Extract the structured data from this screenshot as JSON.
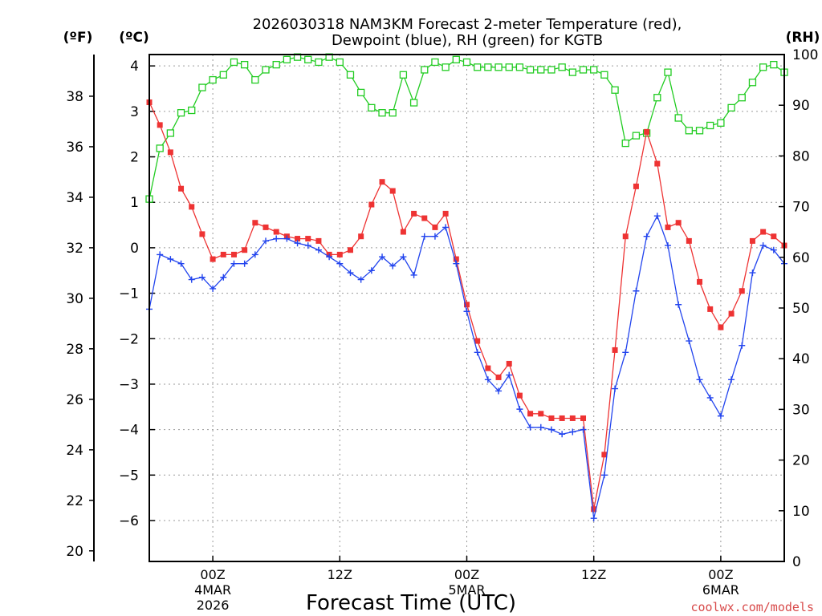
{
  "chart_data": {
    "type": "line",
    "title_line1": "2026030318 NAM3KM Forecast 2-meter Temperature (red),",
    "title_line2": "Dewpoint (blue), RH (green) for KGTB",
    "xlabel": "Forecast Time (UTC)",
    "credit": "coolwx.com/models",
    "left_outer_unit": "(ºF)",
    "left_inner_unit": "(ºC)",
    "right_unit": "(RH)",
    "xlim": [
      -6,
      54
    ],
    "ylim_c": [
      -6.9,
      4.25
    ],
    "ylim_rh": [
      0,
      100
    ],
    "x_ticks": [
      {
        "x": 0,
        "l1": "00Z",
        "l2": "4MAR",
        "l3": "2026"
      },
      {
        "x": 12,
        "l1": "12Z",
        "l2": "",
        "l3": ""
      },
      {
        "x": 24,
        "l1": "00Z",
        "l2": "5MAR",
        "l3": ""
      },
      {
        "x": 36,
        "l1": "12Z",
        "l2": "",
        "l3": ""
      },
      {
        "x": 48,
        "l1": "00Z",
        "l2": "6MAR",
        "l3": ""
      }
    ],
    "c_ticks": [
      4,
      3,
      2,
      1,
      0,
      -1,
      -2,
      -3,
      -4,
      -5,
      -6
    ],
    "c_tick_labels": [
      "4",
      "3",
      "2",
      "1",
      "0",
      "−1",
      "−2",
      "−3",
      "−4",
      "−5",
      "−6"
    ],
    "f_ticks": [
      38,
      36,
      34,
      32,
      30,
      28,
      26,
      24,
      22,
      20
    ],
    "rh_ticks": [
      100,
      90,
      80,
      70,
      60,
      50,
      40,
      30,
      20,
      10,
      0
    ],
    "series": [
      {
        "name": "Temperature",
        "color": "#ee3333",
        "marker": "filled-square",
        "unit": "C",
        "x": [
          -6,
          -5,
          -4,
          -3,
          -2,
          -1,
          0,
          1,
          2,
          3,
          4,
          5,
          6,
          7,
          8,
          9,
          10,
          11,
          12,
          13,
          14,
          15,
          16,
          17,
          18,
          19,
          20,
          21,
          22,
          23,
          24,
          25,
          26,
          27,
          28,
          29,
          30,
          31,
          32,
          33,
          34,
          35,
          36,
          37,
          38,
          39,
          40,
          41,
          42,
          43,
          44,
          45,
          46,
          47,
          48,
          49,
          50,
          51,
          52,
          53,
          54
        ],
        "values": [
          3.2,
          2.7,
          2.1,
          1.3,
          0.9,
          0.3,
          -0.25,
          -0.15,
          -0.15,
          -0.05,
          0.55,
          0.45,
          0.35,
          0.25,
          0.2,
          0.2,
          0.15,
          -0.15,
          -0.15,
          -0.05,
          0.25,
          0.95,
          1.45,
          1.25,
          0.35,
          0.75,
          0.65,
          0.45,
          0.75,
          -0.25,
          -1.25,
          -2.05,
          -2.65,
          -2.85,
          -2.55,
          -3.25,
          -3.65,
          -3.65,
          -3.75,
          -3.75,
          -3.75,
          -3.75,
          -5.75,
          -4.55,
          -2.25,
          0.25,
          1.35,
          2.55,
          1.85,
          0.45,
          0.55,
          0.15,
          -0.75,
          -1.35,
          -1.75,
          -1.45,
          -0.95,
          0.15,
          0.35,
          0.25,
          0.05
        ]
      },
      {
        "name": "Dewpoint",
        "color": "#2244ee",
        "marker": "plus",
        "unit": "C",
        "x": [
          -6,
          -5,
          -4,
          -3,
          -2,
          -1,
          0,
          1,
          2,
          3,
          4,
          5,
          6,
          7,
          8,
          9,
          10,
          11,
          12,
          13,
          14,
          15,
          16,
          17,
          18,
          19,
          20,
          21,
          22,
          23,
          24,
          25,
          26,
          27,
          28,
          29,
          30,
          31,
          32,
          33,
          34,
          35,
          36,
          37,
          38,
          39,
          40,
          41,
          42,
          43,
          44,
          45,
          46,
          47,
          48,
          49,
          50,
          51,
          52,
          53,
          54
        ],
        "values": [
          -1.35,
          -0.15,
          -0.25,
          -0.35,
          -0.7,
          -0.65,
          -0.9,
          -0.65,
          -0.35,
          -0.35,
          -0.15,
          0.15,
          0.2,
          0.2,
          0.1,
          0.05,
          -0.05,
          -0.2,
          -0.35,
          -0.55,
          -0.7,
          -0.5,
          -0.2,
          -0.4,
          -0.2,
          -0.6,
          0.25,
          0.25,
          0.45,
          -0.35,
          -1.4,
          -2.3,
          -2.9,
          -3.15,
          -2.8,
          -3.55,
          -3.95,
          -3.95,
          -4.0,
          -4.1,
          -4.05,
          -4.0,
          -5.95,
          -5.0,
          -3.1,
          -2.3,
          -0.95,
          0.25,
          0.7,
          0.05,
          -1.25,
          -2.05,
          -2.9,
          -3.3,
          -3.7,
          -2.9,
          -2.15,
          -0.55,
          0.05,
          -0.05,
          -0.35
        ]
      },
      {
        "name": "RH",
        "color": "#22cc22",
        "marker": "open-square",
        "unit": "%",
        "x": [
          -6,
          -5,
          -4,
          -3,
          -2,
          -1,
          0,
          1,
          2,
          3,
          4,
          5,
          6,
          7,
          8,
          9,
          10,
          11,
          12,
          13,
          14,
          15,
          16,
          17,
          18,
          19,
          20,
          21,
          22,
          23,
          24,
          25,
          26,
          27,
          28,
          29,
          30,
          31,
          32,
          33,
          34,
          35,
          36,
          37,
          38,
          39,
          40,
          41,
          42,
          43,
          44,
          45,
          46,
          47,
          48,
          49,
          50,
          51,
          52,
          53,
          54
        ],
        "values": [
          71.5,
          81.5,
          84.5,
          88.5,
          89,
          93.5,
          95,
          96,
          98.5,
          98,
          95,
          97,
          98,
          99,
          99.5,
          99,
          98.5,
          99.5,
          98.5,
          96,
          92.5,
          89.5,
          88.5,
          88.5,
          96,
          90.5,
          97,
          98.5,
          97.5,
          99,
          98.5,
          97.5,
          97.5,
          97.5,
          97.5,
          97.5,
          97,
          97,
          97,
          97.5,
          96.5,
          97,
          97,
          96,
          93,
          82.5,
          84,
          84.5,
          91.5,
          96.5,
          87.5,
          85,
          85,
          86,
          86.5,
          89.5,
          91.5,
          94.5,
          97.5,
          98,
          96.5
        ]
      }
    ]
  }
}
